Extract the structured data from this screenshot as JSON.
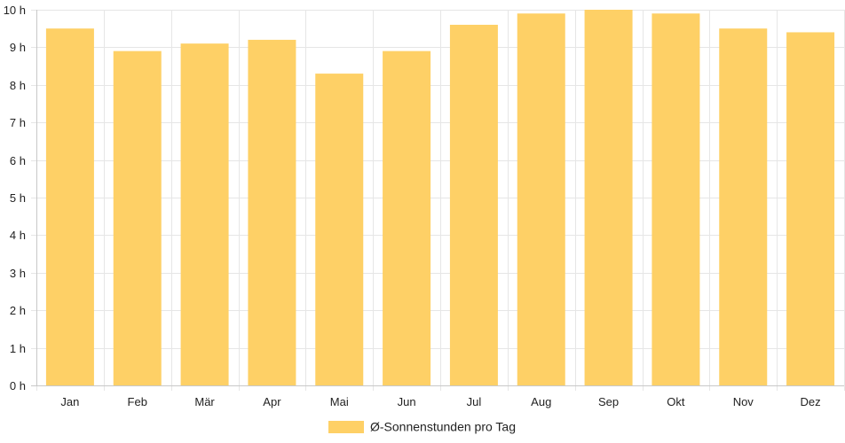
{
  "chart_data": {
    "type": "bar",
    "categories": [
      "Jan",
      "Feb",
      "Mär",
      "Apr",
      "Mai",
      "Jun",
      "Jul",
      "Aug",
      "Sep",
      "Okt",
      "Nov",
      "Dez"
    ],
    "series": [
      {
        "name": "Ø-Sonnenstunden pro Tag",
        "values": [
          9.5,
          8.9,
          9.1,
          9.2,
          8.3,
          8.9,
          9.6,
          9.9,
          10.0,
          9.9,
          9.5,
          9.4
        ]
      }
    ],
    "y_ticks": [
      "0 h",
      "1 h",
      "2 h",
      "3 h",
      "4 h",
      "5 h",
      "6 h",
      "7 h",
      "8 h",
      "9 h",
      "10 h"
    ],
    "ylim": [
      0,
      10
    ],
    "grid": true,
    "legend_position": "bottom",
    "colors": {
      "bar": "#fed066",
      "grid": "#e6e6e6",
      "axis": "#c8c8c8",
      "text": "#222222"
    }
  }
}
